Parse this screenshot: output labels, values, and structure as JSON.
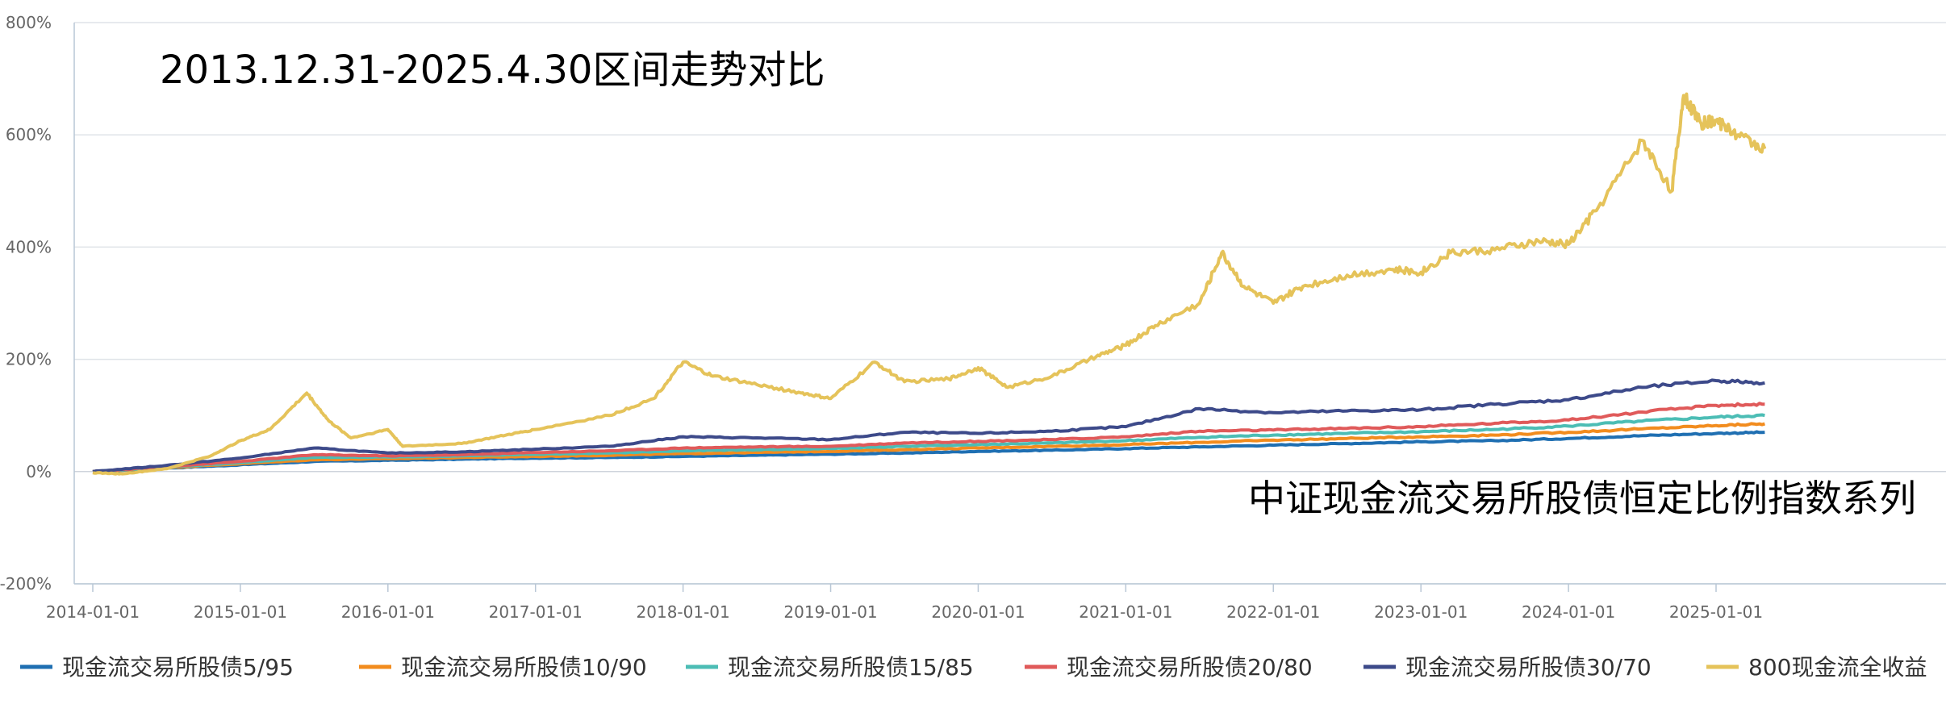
{
  "chart_data": {
    "type": "line",
    "title": "2013.12.31-2025.4.30区间走势对比",
    "subtitle": "中证现金流交易所股债恒定比例指数系列",
    "y_axis": {
      "min": -200,
      "max": 800,
      "ticks": [
        "800%",
        "600%",
        "400%",
        "200%",
        "0%",
        "-200%"
      ],
      "tick_values": [
        800,
        600,
        400,
        200,
        0,
        -200
      ]
    },
    "x_axis": {
      "ticks": [
        "2014-01-01",
        "2015-01-01",
        "2016-01-01",
        "2017-01-01",
        "2018-01-01",
        "2019-01-01",
        "2020-01-01",
        "2021-01-01",
        "2022-01-01",
        "2023-01-01",
        "2024-01-01",
        "2025-01-01"
      ],
      "tick_years": [
        2014,
        2015,
        2016,
        2017,
        2018,
        2019,
        2020,
        2021,
        2022,
        2023,
        2024,
        2025
      ]
    },
    "legend_position": "bottom",
    "grid": true,
    "series": [
      {
        "name": "现金流交易所股债5/95",
        "color": "#1f6fb2",
        "points": [
          [
            2014.0,
            0
          ],
          [
            2014.5,
            6
          ],
          [
            2015.0,
            12
          ],
          [
            2015.5,
            18
          ],
          [
            2016.0,
            20
          ],
          [
            2016.5,
            22
          ],
          [
            2017.0,
            24
          ],
          [
            2017.5,
            25
          ],
          [
            2018.0,
            27
          ],
          [
            2018.5,
            29
          ],
          [
            2019.0,
            31
          ],
          [
            2019.5,
            33
          ],
          [
            2020.0,
            36
          ],
          [
            2020.5,
            38
          ],
          [
            2021.0,
            41
          ],
          [
            2021.5,
            44
          ],
          [
            2022.0,
            47
          ],
          [
            2022.5,
            50
          ],
          [
            2023.0,
            53
          ],
          [
            2023.5,
            55
          ],
          [
            2024.0,
            59
          ],
          [
            2024.5,
            64
          ],
          [
            2025.0,
            68
          ],
          [
            2025.33,
            70
          ]
        ]
      },
      {
        "name": "现金流交易所股债10/90",
        "color": "#f28c1e",
        "points": [
          [
            2014.0,
            0
          ],
          [
            2014.5,
            7
          ],
          [
            2015.0,
            14
          ],
          [
            2015.5,
            21
          ],
          [
            2016.0,
            23
          ],
          [
            2016.5,
            25
          ],
          [
            2017.0,
            27
          ],
          [
            2017.5,
            29
          ],
          [
            2018.0,
            32
          ],
          [
            2018.5,
            34
          ],
          [
            2019.0,
            36
          ],
          [
            2019.5,
            39
          ],
          [
            2020.0,
            42
          ],
          [
            2020.5,
            45
          ],
          [
            2021.0,
            48
          ],
          [
            2021.5,
            52
          ],
          [
            2022.0,
            56
          ],
          [
            2022.5,
            59
          ],
          [
            2023.0,
            62
          ],
          [
            2023.5,
            65
          ],
          [
            2024.0,
            70
          ],
          [
            2024.5,
            76
          ],
          [
            2025.0,
            82
          ],
          [
            2025.33,
            85
          ]
        ]
      },
      {
        "name": "现金流交易所股债15/85",
        "color": "#4cbdb5",
        "points": [
          [
            2014.0,
            0
          ],
          [
            2014.5,
            8
          ],
          [
            2015.0,
            16
          ],
          [
            2015.5,
            25
          ],
          [
            2016.0,
            26
          ],
          [
            2016.5,
            28
          ],
          [
            2017.0,
            31
          ],
          [
            2017.5,
            33
          ],
          [
            2018.0,
            37
          ],
          [
            2018.5,
            39
          ],
          [
            2019.0,
            41
          ],
          [
            2019.5,
            45
          ],
          [
            2020.0,
            48
          ],
          [
            2020.5,
            51
          ],
          [
            2021.0,
            55
          ],
          [
            2021.5,
            61
          ],
          [
            2022.0,
            65
          ],
          [
            2022.5,
            68
          ],
          [
            2023.0,
            71
          ],
          [
            2023.5,
            75
          ],
          [
            2024.0,
            81
          ],
          [
            2024.5,
            90
          ],
          [
            2025.0,
            97
          ],
          [
            2025.33,
            100
          ]
        ]
      },
      {
        "name": "现金流交易所股债20/80",
        "color": "#e05a5a",
        "points": [
          [
            2014.0,
            0
          ],
          [
            2014.5,
            9
          ],
          [
            2015.0,
            18
          ],
          [
            2015.5,
            30
          ],
          [
            2016.0,
            28
          ],
          [
            2016.5,
            30
          ],
          [
            2017.0,
            34
          ],
          [
            2017.5,
            37
          ],
          [
            2018.0,
            42
          ],
          [
            2018.5,
            44
          ],
          [
            2019.0,
            45
          ],
          [
            2019.5,
            51
          ],
          [
            2020.0,
            54
          ],
          [
            2020.5,
            57
          ],
          [
            2021.0,
            62
          ],
          [
            2021.5,
            72
          ],
          [
            2022.0,
            74
          ],
          [
            2022.5,
            77
          ],
          [
            2023.0,
            80
          ],
          [
            2023.5,
            86
          ],
          [
            2024.0,
            92
          ],
          [
            2024.5,
            106
          ],
          [
            2025.0,
            118
          ],
          [
            2025.33,
            120
          ]
        ]
      },
      {
        "name": "现金流交易所股债30/70",
        "color": "#3d4a8a",
        "points": [
          [
            2014.0,
            0
          ],
          [
            2014.5,
            11
          ],
          [
            2015.0,
            24
          ],
          [
            2015.5,
            42
          ],
          [
            2016.0,
            33
          ],
          [
            2016.5,
            35
          ],
          [
            2017.0,
            40
          ],
          [
            2017.5,
            45
          ],
          [
            2018.0,
            62
          ],
          [
            2018.5,
            60
          ],
          [
            2019.0,
            57
          ],
          [
            2019.5,
            70
          ],
          [
            2020.0,
            68
          ],
          [
            2020.5,
            72
          ],
          [
            2021.0,
            80
          ],
          [
            2021.5,
            112
          ],
          [
            2022.0,
            105
          ],
          [
            2022.5,
            108
          ],
          [
            2023.0,
            110
          ],
          [
            2023.5,
            120
          ],
          [
            2024.0,
            128
          ],
          [
            2024.5,
            150
          ],
          [
            2025.0,
            162
          ],
          [
            2025.33,
            158
          ]
        ]
      },
      {
        "name": "800现金流全收益",
        "color": "#e5c35a",
        "points": [
          [
            2014.0,
            -2
          ],
          [
            2014.2,
            -4
          ],
          [
            2014.5,
            5
          ],
          [
            2014.8,
            28
          ],
          [
            2015.0,
            55
          ],
          [
            2015.2,
            75
          ],
          [
            2015.45,
            140
          ],
          [
            2015.6,
            90
          ],
          [
            2015.75,
            60
          ],
          [
            2016.0,
            75
          ],
          [
            2016.1,
            45
          ],
          [
            2016.5,
            50
          ],
          [
            2016.8,
            65
          ],
          [
            2017.0,
            75
          ],
          [
            2017.5,
            100
          ],
          [
            2017.8,
            130
          ],
          [
            2018.0,
            195
          ],
          [
            2018.2,
            170
          ],
          [
            2018.5,
            155
          ],
          [
            2018.8,
            140
          ],
          [
            2019.0,
            130
          ],
          [
            2019.3,
            195
          ],
          [
            2019.5,
            160
          ],
          [
            2019.8,
            165
          ],
          [
            2020.0,
            185
          ],
          [
            2020.2,
            150
          ],
          [
            2020.5,
            170
          ],
          [
            2020.8,
            205
          ],
          [
            2021.0,
            225
          ],
          [
            2021.2,
            260
          ],
          [
            2021.5,
            300
          ],
          [
            2021.65,
            390
          ],
          [
            2021.8,
            330
          ],
          [
            2022.0,
            300
          ],
          [
            2022.2,
            330
          ],
          [
            2022.5,
            350
          ],
          [
            2022.8,
            360
          ],
          [
            2023.0,
            355
          ],
          [
            2023.2,
            390
          ],
          [
            2023.5,
            395
          ],
          [
            2023.8,
            410
          ],
          [
            2024.0,
            405
          ],
          [
            2024.2,
            470
          ],
          [
            2024.5,
            590
          ],
          [
            2024.7,
            500
          ],
          [
            2024.78,
            670
          ],
          [
            2024.9,
            620
          ],
          [
            2025.0,
            625
          ],
          [
            2025.15,
            600
          ],
          [
            2025.33,
            575
          ]
        ]
      }
    ]
  }
}
